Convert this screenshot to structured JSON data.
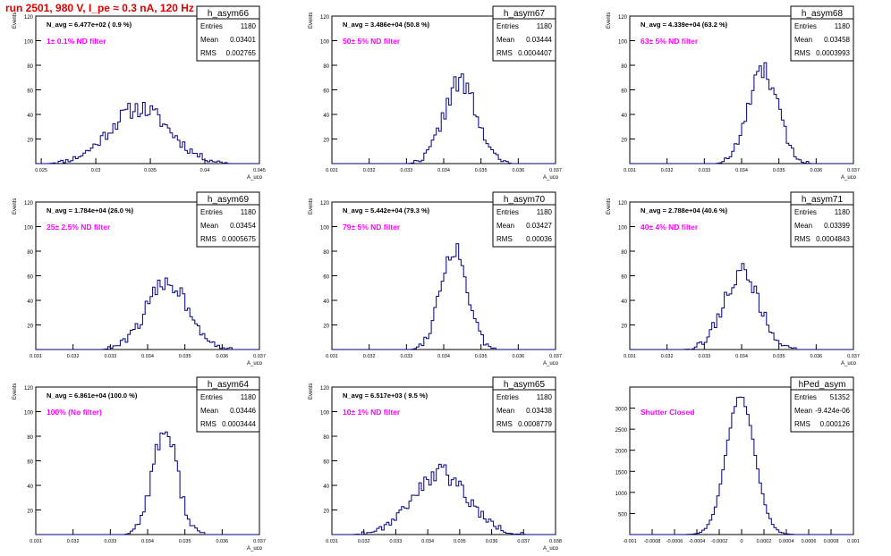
{
  "header": {
    "title": "run 2501,   980 V, I_pe ≈ 0.3 nA, 120 Hz"
  },
  "style": {
    "title_color": "#e00000",
    "hist_color": "#000080",
    "label_color": "#ff00ff"
  },
  "chart_data": [
    {
      "type": "histogram",
      "name": "h_asym66",
      "navg": "N_avg = 6.477e+02 ( 0.9 %)",
      "filter": "1± 0.1% ND filter",
      "entries": "1180",
      "mean": "0.03401",
      "rms": "0.002765",
      "xmin": 0.0245,
      "xmax": 0.045,
      "ymax": 120,
      "xticks": [
        "0.025",
        "0.03",
        "0.035",
        "0.04",
        "0.045"
      ],
      "xtick_vals": [
        0.025,
        0.03,
        0.035,
        0.04,
        0.045
      ],
      "yticks": [
        "20",
        "40",
        "60",
        "80",
        "100",
        "120"
      ],
      "xlabel": "A_uco",
      "ylabel": "Events",
      "center": 0.03401,
      "sigma": 0.002765,
      "peak": 45,
      "seed": 11
    },
    {
      "type": "histogram",
      "name": "h_asym67",
      "navg": "N_avg = 3.486e+04 (50.8 %)",
      "filter": "50± 5% ND filter",
      "entries": "1180",
      "mean": "0.03444",
      "rms": "0.0004407",
      "xmin": 0.031,
      "xmax": 0.037,
      "ymax": 120,
      "xticks": [
        "0.031",
        "0.032",
        "0.033",
        "0.034",
        "0.035",
        "0.036",
        "0.037"
      ],
      "xtick_vals": [
        0.031,
        0.032,
        0.033,
        0.034,
        0.035,
        0.036,
        0.037
      ],
      "yticks": [
        "20",
        "40",
        "60",
        "80",
        "100",
        "120"
      ],
      "xlabel": "A_uco",
      "ylabel": "Events",
      "center": 0.03444,
      "sigma": 0.00044,
      "peak": 66,
      "seed": 22
    },
    {
      "type": "histogram",
      "name": "h_asym68",
      "navg": "N_avg = 4.339e+04 (63.2 %)",
      "filter": "63± 5% ND filter",
      "entries": "1180",
      "mean": "0.03458",
      "rms": "0.0003993",
      "xmin": 0.031,
      "xmax": 0.037,
      "ymax": 120,
      "xticks": [
        "0.031",
        "0.032",
        "0.033",
        "0.034",
        "0.035",
        "0.036",
        "0.037"
      ],
      "xtick_vals": [
        0.031,
        0.032,
        0.033,
        0.034,
        0.035,
        0.036,
        0.037
      ],
      "yticks": [
        "20",
        "40",
        "60",
        "80",
        "100",
        "120"
      ],
      "xlabel": "A_uco",
      "ylabel": "Events",
      "center": 0.03458,
      "sigma": 0.0004,
      "peak": 75,
      "seed": 33
    },
    {
      "type": "histogram",
      "name": "h_asym69",
      "navg": "N_avg = 1.784e+04 (26.0 %)",
      "filter": "25± 2.5% ND filter",
      "entries": "1180",
      "mean": "0.03454",
      "rms": "0.0005675",
      "xmin": 0.031,
      "xmax": 0.037,
      "ymax": 120,
      "xticks": [
        "0.031",
        "0.032",
        "0.033",
        "0.034",
        "0.035",
        "0.036",
        "0.037"
      ],
      "xtick_vals": [
        0.031,
        0.032,
        0.033,
        0.034,
        0.035,
        0.036,
        0.037
      ],
      "yticks": [
        "20",
        "40",
        "60",
        "80",
        "100",
        "120"
      ],
      "xlabel": "A_uco",
      "ylabel": "Events",
      "center": 0.03454,
      "sigma": 0.00057,
      "peak": 55,
      "seed": 44
    },
    {
      "type": "histogram",
      "name": "h_asym70",
      "navg": "N_avg = 5.442e+04 (79.3 %)",
      "filter": "79± 5% ND filter",
      "entries": "1180",
      "mean": "0.03427",
      "rms": "0.00036",
      "xmin": 0.031,
      "xmax": 0.037,
      "ymax": 120,
      "xticks": [
        "0.031",
        "0.032",
        "0.033",
        "0.034",
        "0.035",
        "0.036",
        "0.037"
      ],
      "xtick_vals": [
        0.031,
        0.032,
        0.033,
        0.034,
        0.035,
        0.036,
        0.037
      ],
      "yticks": [
        "20",
        "40",
        "60",
        "80",
        "100",
        "120"
      ],
      "xlabel": "A_uco",
      "ylabel": "Events",
      "center": 0.03427,
      "sigma": 0.00036,
      "peak": 83,
      "seed": 55
    },
    {
      "type": "histogram",
      "name": "h_asym71",
      "navg": "N_avg = 2.788e+04 (40.6 %)",
      "filter": "40± 4% ND filter",
      "entries": "1180",
      "mean": "0.03399",
      "rms": "0.0004843",
      "xmin": 0.031,
      "xmax": 0.037,
      "ymax": 120,
      "xticks": [
        "0.031",
        "0.032",
        "0.033",
        "0.034",
        "0.035",
        "0.036",
        "0.037"
      ],
      "xtick_vals": [
        0.031,
        0.032,
        0.033,
        0.034,
        0.035,
        0.036,
        0.037
      ],
      "yticks": [
        "20",
        "40",
        "60",
        "80",
        "100",
        "120"
      ],
      "xlabel": "A_uco",
      "ylabel": "Events",
      "center": 0.03399,
      "sigma": 0.00048,
      "peak": 62,
      "seed": 66
    },
    {
      "type": "histogram",
      "name": "h_asym64",
      "navg": "N_avg = 6.861e+04 (100.0 %)",
      "filter": "100% (No filter)",
      "entries": "1180",
      "mean": "0.03446",
      "rms": "0.0003444",
      "xmin": 0.031,
      "xmax": 0.037,
      "ymax": 120,
      "xticks": [
        "0.031",
        "0.032",
        "0.033",
        "0.034",
        "0.035",
        "0.036",
        "0.037"
      ],
      "xtick_vals": [
        0.031,
        0.032,
        0.033,
        0.034,
        0.035,
        0.036,
        0.037
      ],
      "yticks": [
        "20",
        "40",
        "60",
        "80",
        "100",
        "120"
      ],
      "xlabel": "A_uco",
      "ylabel": "Events",
      "center": 0.03446,
      "sigma": 0.00034,
      "peak": 84,
      "seed": 77
    },
    {
      "type": "histogram",
      "name": "h_asym65",
      "navg": "N_avg = 6.517e+03 ( 9.5 %)",
      "filter": "10± 1% ND filter",
      "entries": "1180",
      "mean": "0.03438",
      "rms": "0.0008779",
      "xmin": 0.031,
      "xmax": 0.038,
      "ymax": 120,
      "xticks": [
        "0.031",
        "0.032",
        "0.033",
        "0.034",
        "0.035",
        "0.036",
        "0.037",
        "0.038"
      ],
      "xtick_vals": [
        0.031,
        0.032,
        0.033,
        0.034,
        0.035,
        0.036,
        0.037,
        0.038
      ],
      "yticks": [
        "20",
        "40",
        "60",
        "80",
        "100",
        "120"
      ],
      "xlabel": "A_uco",
      "ylabel": "Events",
      "center": 0.03438,
      "sigma": 0.00088,
      "peak": 50,
      "seed": 88
    },
    {
      "type": "histogram",
      "name": "hPed_asym",
      "navg": "",
      "filter": "Shutter Closed",
      "entries": "51352",
      "mean": "-9.424e-06",
      "rms": "0.000126",
      "xmin": -0.001,
      "xmax": 0.001,
      "ymax": 3500,
      "xticks": [
        "-0.001",
        "-0.0008",
        "-0.0006",
        "-0.0004",
        "-0.0002",
        "0",
        "0.0002",
        "0.0004",
        "0.0006",
        "0.0008",
        "0.001"
      ],
      "xtick_vals": [
        -0.001,
        -0.0008,
        -0.0006,
        -0.0004,
        -0.0002,
        0,
        0.0002,
        0.0004,
        0.0006,
        0.0008,
        0.001
      ],
      "yticks": [
        "500",
        "1000",
        "1500",
        "2000",
        "2500",
        "3000"
      ],
      "xlabel": "",
      "ylabel": "",
      "center": -9.4e-06,
      "sigma": 0.000126,
      "peak": 3280,
      "seed": 99
    }
  ]
}
